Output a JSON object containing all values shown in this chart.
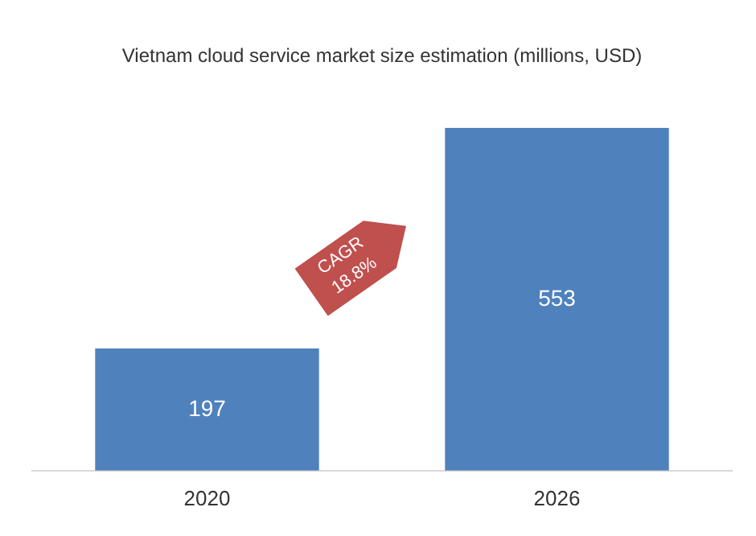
{
  "chart_data": {
    "type": "bar",
    "title": "Vietnam cloud service market size estimation (millions, USD)",
    "categories": [
      "2020",
      "2026"
    ],
    "values": [
      197,
      553
    ],
    "color": "#4f81bd",
    "data_labels": true,
    "grid": false,
    "legend": false,
    "annotations": [
      "CAGR 18.8%"
    ]
  }
}
